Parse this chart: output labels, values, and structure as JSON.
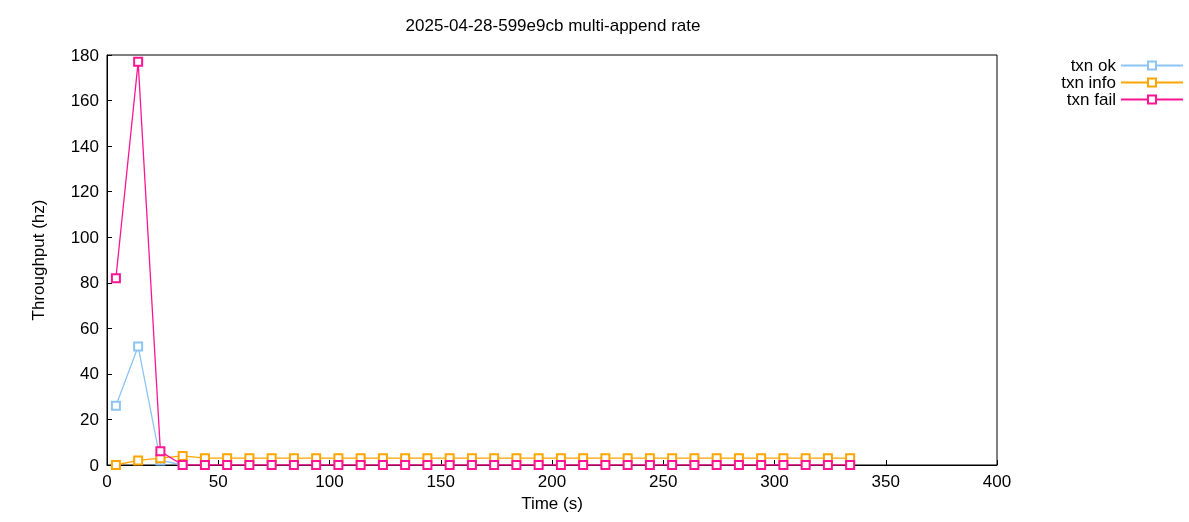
{
  "chart_data": {
    "type": "line",
    "title": "2025-04-28-599e9cb multi-append rate",
    "xlabel": "Time (s)",
    "ylabel": "Throughput (hz)",
    "x": [
      4,
      14,
      24,
      34,
      44,
      54,
      64,
      74,
      84,
      94,
      104,
      114,
      124,
      134,
      144,
      154,
      164,
      174,
      184,
      194,
      204,
      214,
      224,
      234,
      244,
      254,
      264,
      274,
      284,
      294,
      304,
      314,
      324,
      334
    ],
    "series": [
      {
        "name": "txn ok",
        "color": "#8cc4f4",
        "values": [
          26,
          52,
          2,
          0,
          null,
          null,
          null,
          null,
          null,
          null,
          null,
          null,
          null,
          null,
          null,
          null,
          null,
          null,
          null,
          null,
          null,
          null,
          null,
          null,
          null,
          null,
          null,
          null,
          null,
          null,
          null,
          null,
          null,
          null
        ]
      },
      {
        "name": "txn info",
        "color": "#ffa500",
        "values": [
          0,
          2,
          3,
          4,
          3,
          3,
          3,
          3,
          3,
          3,
          3,
          3,
          3,
          3,
          3,
          3,
          3,
          3,
          3,
          3,
          3,
          3,
          3,
          3,
          3,
          3,
          3,
          3,
          3,
          3,
          3,
          3,
          3,
          3
        ]
      },
      {
        "name": "txn fail",
        "color": "#ff1493",
        "values": [
          82,
          177,
          6,
          0,
          0,
          0,
          0,
          0,
          0,
          0,
          0,
          0,
          0,
          0,
          0,
          0,
          0,
          0,
          0,
          0,
          0,
          0,
          0,
          0,
          0,
          0,
          0,
          0,
          0,
          0,
          0,
          0,
          0,
          0
        ]
      }
    ],
    "xlim": [
      0,
      400
    ],
    "xticks": [
      0,
      50,
      100,
      150,
      200,
      250,
      300,
      350,
      400
    ],
    "ylim": [
      0,
      180
    ],
    "yticks": [
      0,
      20,
      40,
      60,
      80,
      100,
      120,
      140,
      160,
      180
    ],
    "grid": false,
    "legend": "top right",
    "marker": "square",
    "line_style": "solid"
  }
}
